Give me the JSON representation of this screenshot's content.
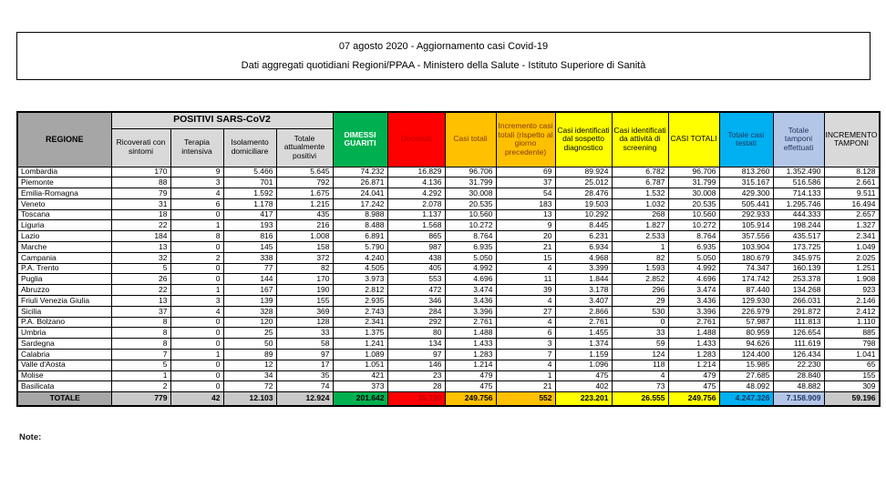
{
  "title": {
    "line1": "07 agosto 2020 - Aggiornamento casi Covid-19",
    "line2": "Dati aggregati quotidiani Regioni/PPAA - Ministero della Salute - Istituto Superiore di Sanità"
  },
  "note_label": "Note:",
  "colors": {
    "green": "#00b050",
    "red": "#ff0000",
    "orange": "#ffc000",
    "yellow": "#ffff00",
    "cyan": "#00b0f0",
    "light_blue": "#b4c6e7",
    "header_gray": "#d9d9d9",
    "dark_gray": "#a6a6a6",
    "dark_red_text": "#c00000",
    "dark_blue_text": "#1f3864"
  },
  "table": {
    "header": {
      "regione": "REGIONE",
      "positivi_group": "POSITIVI SARS-CoV2",
      "sub": [
        "Ricoverati con sintomi",
        "Terapia intensiva",
        "Isolamento domiciliare",
        "Totale attualmente positivi"
      ],
      "dimessi_guariti": "DIMESSI GUARITI",
      "deceduti": "Deceduti",
      "casi_totali": "Casi totali",
      "incremento_casi": "Incremento casi totali (rispetto al giorno precedente)",
      "casi_sospetto": "Casi identificati dal sospetto diagnostico",
      "casi_screening": "Casi identificati da attività di screening",
      "casi_totali_2": "CASI TOTALI",
      "totale_testati": "Totale casi testati",
      "totale_tamponi": "Totale tamponi effettuati",
      "incremento_tamponi": "INCREMENTO TAMPONI"
    },
    "rows": [
      [
        "Lombardia",
        "170",
        "9",
        "5.466",
        "5.645",
        "74.232",
        "16.829",
        "96.706",
        "69",
        "89.924",
        "6.782",
        "96.706",
        "813.260",
        "1.352.490",
        "8.128"
      ],
      [
        "Piemonte",
        "88",
        "3",
        "701",
        "792",
        "26.871",
        "4.136",
        "31.799",
        "37",
        "25.012",
        "6.787",
        "31.799",
        "315.167",
        "516.586",
        "2.661"
      ],
      [
        "Emilia-Romagna",
        "79",
        "4",
        "1.592",
        "1.675",
        "24.041",
        "4.292",
        "30.008",
        "54",
        "28.476",
        "1.532",
        "30.008",
        "429.300",
        "714.133",
        "9.511"
      ],
      [
        "Veneto",
        "31",
        "6",
        "1.178",
        "1.215",
        "17.242",
        "2.078",
        "20.535",
        "183",
        "19.503",
        "1.032",
        "20.535",
        "505.441",
        "1.295.746",
        "16.494"
      ],
      [
        "Toscana",
        "18",
        "0",
        "417",
        "435",
        "8.988",
        "1.137",
        "10.560",
        "13",
        "10.292",
        "268",
        "10.560",
        "292.933",
        "444.333",
        "2.657"
      ],
      [
        "Liguria",
        "22",
        "1",
        "193",
        "216",
        "8.488",
        "1.568",
        "10.272",
        "9",
        "8.445",
        "1.827",
        "10.272",
        "105.914",
        "198.244",
        "1.327"
      ],
      [
        "Lazio",
        "184",
        "8",
        "816",
        "1.008",
        "6.891",
        "865",
        "8.764",
        "20",
        "6.231",
        "2.533",
        "8.764",
        "357.556",
        "435.517",
        "2.341"
      ],
      [
        "Marche",
        "13",
        "0",
        "145",
        "158",
        "5.790",
        "987",
        "6.935",
        "21",
        "6.934",
        "1",
        "6.935",
        "103.904",
        "173.725",
        "1.049"
      ],
      [
        "Campania",
        "32",
        "2",
        "338",
        "372",
        "4.240",
        "438",
        "5.050",
        "15",
        "4.968",
        "82",
        "5.050",
        "180.679",
        "345.975",
        "2.025"
      ],
      [
        "P.A. Trento",
        "5",
        "0",
        "77",
        "82",
        "4.505",
        "405",
        "4.992",
        "4",
        "3.399",
        "1.593",
        "4.992",
        "74.347",
        "160.139",
        "1.251"
      ],
      [
        "Puglia",
        "26",
        "0",
        "144",
        "170",
        "3.973",
        "553",
        "4.696",
        "11",
        "1.844",
        "2.852",
        "4.696",
        "174.742",
        "253.378",
        "1.908"
      ],
      [
        "Abruzzo",
        "22",
        "1",
        "167",
        "190",
        "2.812",
        "472",
        "3.474",
        "39",
        "3.178",
        "296",
        "3.474",
        "87.440",
        "134.268",
        "923"
      ],
      [
        "Friuli Venezia Giulia",
        "13",
        "3",
        "139",
        "155",
        "2.935",
        "346",
        "3.436",
        "4",
        "3.407",
        "29",
        "3.436",
        "129.930",
        "266.031",
        "2.146"
      ],
      [
        "Sicilia",
        "37",
        "4",
        "328",
        "369",
        "2.743",
        "284",
        "3.396",
        "27",
        "2.866",
        "530",
        "3.396",
        "226.979",
        "291.872",
        "2.412"
      ],
      [
        "P.A. Bolzano",
        "8",
        "0",
        "120",
        "128",
        "2.341",
        "292",
        "2.761",
        "4",
        "2.761",
        "0",
        "2.761",
        "57.987",
        "111.813",
        "1.110"
      ],
      [
        "Umbria",
        "8",
        "0",
        "25",
        "33",
        "1.375",
        "80",
        "1.488",
        "6",
        "1.455",
        "33",
        "1.488",
        "80.959",
        "126.654",
        "885"
      ],
      [
        "Sardegna",
        "8",
        "0",
        "50",
        "58",
        "1.241",
        "134",
        "1.433",
        "3",
        "1.374",
        "59",
        "1.433",
        "94.626",
        "111.619",
        "798"
      ],
      [
        "Calabria",
        "7",
        "1",
        "89",
        "97",
        "1.089",
        "97",
        "1.283",
        "7",
        "1.159",
        "124",
        "1.283",
        "124.400",
        "126.434",
        "1.041"
      ],
      [
        "Valle d'Aosta",
        "5",
        "0",
        "12",
        "17",
        "1.051",
        "146",
        "1.214",
        "4",
        "1.096",
        "118",
        "1.214",
        "15.985",
        "22.230",
        "65"
      ],
      [
        "Molise",
        "1",
        "0",
        "34",
        "35",
        "421",
        "23",
        "479",
        "1",
        "475",
        "4",
        "479",
        "27.685",
        "28.840",
        "155"
      ],
      [
        "Basilicata",
        "2",
        "0",
        "72",
        "74",
        "373",
        "28",
        "475",
        "21",
        "402",
        "73",
        "475",
        "48.092",
        "48.882",
        "309"
      ]
    ],
    "total_row": [
      "TOTALE",
      "779",
      "42",
      "12.103",
      "12.924",
      "201.642",
      "35.190",
      "249.756",
      "552",
      "223.201",
      "26.555",
      "249.756",
      "4.247.326",
      "7.158.909",
      "59.196"
    ]
  }
}
